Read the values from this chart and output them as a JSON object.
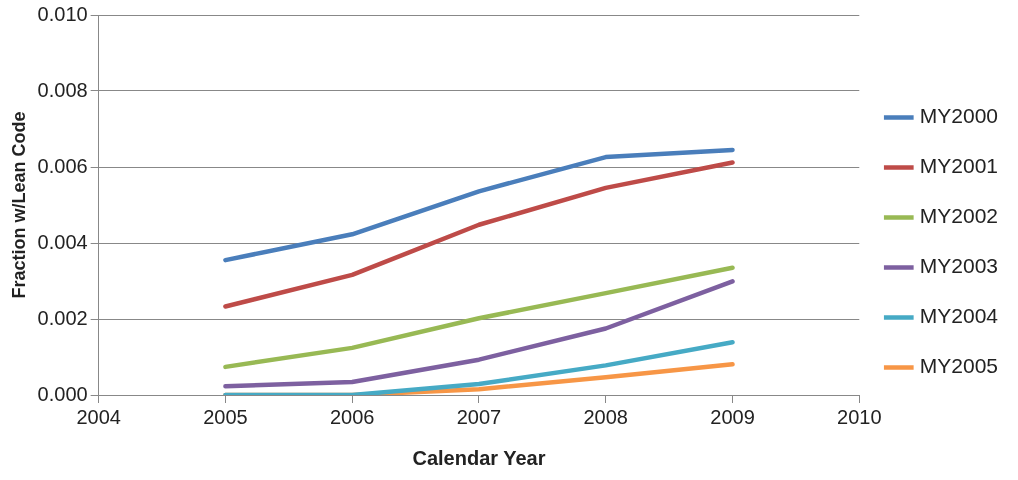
{
  "chart_data": {
    "type": "line",
    "xlabel": "Calendar Year",
    "ylabel": "Fraction w/Lean Code",
    "x": [
      2005,
      2006,
      2007,
      2008,
      2009
    ],
    "series": [
      {
        "name": "MY2000",
        "color": "#4a7ebb",
        "values": [
          0.00355,
          0.00423,
          0.00536,
          0.00626,
          0.00645
        ]
      },
      {
        "name": "MY2001",
        "color": "#be4b48",
        "values": [
          0.00233,
          0.00316,
          0.00448,
          0.00545,
          0.00612
        ]
      },
      {
        "name": "MY2002",
        "color": "#98b954",
        "values": [
          0.00074,
          0.00124,
          0.00202,
          0.00268,
          0.00335
        ]
      },
      {
        "name": "MY2003",
        "color": "#7d60a0",
        "values": [
          0.00023,
          0.00034,
          0.00093,
          0.00175,
          0.00299
        ]
      },
      {
        "name": "MY2004",
        "color": "#46aac5",
        "values": [
          0,
          0,
          0.00029,
          0.00078,
          0.00139
        ]
      },
      {
        "name": "MY2005",
        "color": "#f79646",
        "values": [
          0,
          0,
          0.00015,
          0.00047,
          0.00081
        ]
      }
    ],
    "xlim": [
      2004,
      2010
    ],
    "xticks": [
      2004,
      2005,
      2006,
      2007,
      2008,
      2009,
      2010
    ],
    "ylim": [
      0,
      0.01
    ],
    "yticks": [
      {
        "value": 0,
        "label": "0.000"
      },
      {
        "value": 0.002,
        "label": "0.002"
      },
      {
        "value": 0.004,
        "label": "0.004"
      },
      {
        "value": 0.006,
        "label": "0.006"
      },
      {
        "value": 0.008,
        "label": "0.008"
      },
      {
        "value": 0.01,
        "label": "0.010"
      }
    ],
    "grid": "y",
    "legend": "right",
    "marker": "none",
    "line_style": "solid"
  }
}
